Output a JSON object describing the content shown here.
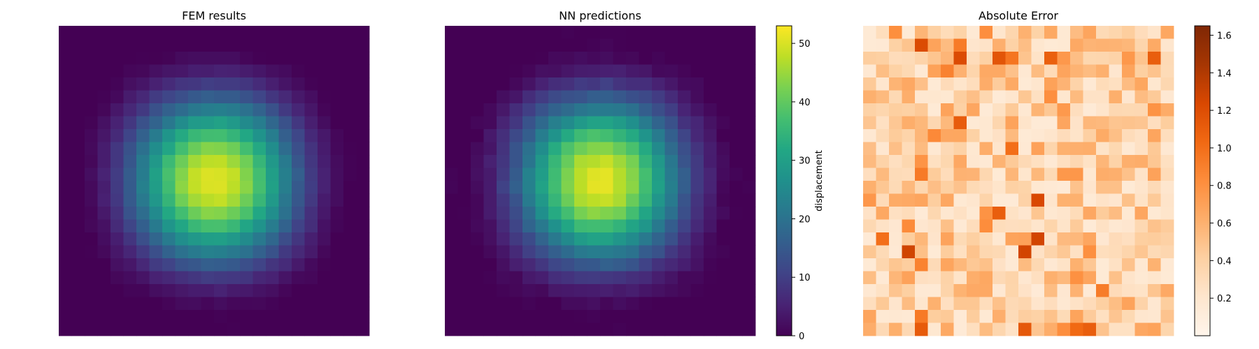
{
  "chart_data": [
    {
      "type": "heatmap",
      "title": "FEM results",
      "grid": [
        24,
        24
      ],
      "colormap": "viridis",
      "value_range": [
        0,
        53
      ],
      "field": "smooth bump peaking near the center, minima along the borders, cells 0 to 23 in each direction",
      "peak_value": 53,
      "axes": "off"
    },
    {
      "type": "heatmap",
      "title": "NN predictions",
      "grid": [
        24,
        24
      ],
      "colormap": "viridis",
      "value_range": [
        0,
        53
      ],
      "peak_value": 53,
      "axes": "off",
      "colorbar": {
        "label": "displacement",
        "ticks": [
          0,
          10,
          20,
          30,
          40,
          50
        ],
        "range": [
          0,
          53
        ]
      }
    },
    {
      "type": "heatmap",
      "title": "Absolute Error",
      "grid": [
        24,
        24
      ],
      "colormap": "oranges",
      "value_range": [
        0,
        1.65
      ],
      "axes": "off",
      "colorbar": {
        "label": "",
        "ticks": [
          0.2,
          0.4,
          0.6,
          0.8,
          1.0,
          1.2,
          1.4,
          1.6
        ],
        "range": [
          0,
          1.65
        ]
      }
    }
  ]
}
